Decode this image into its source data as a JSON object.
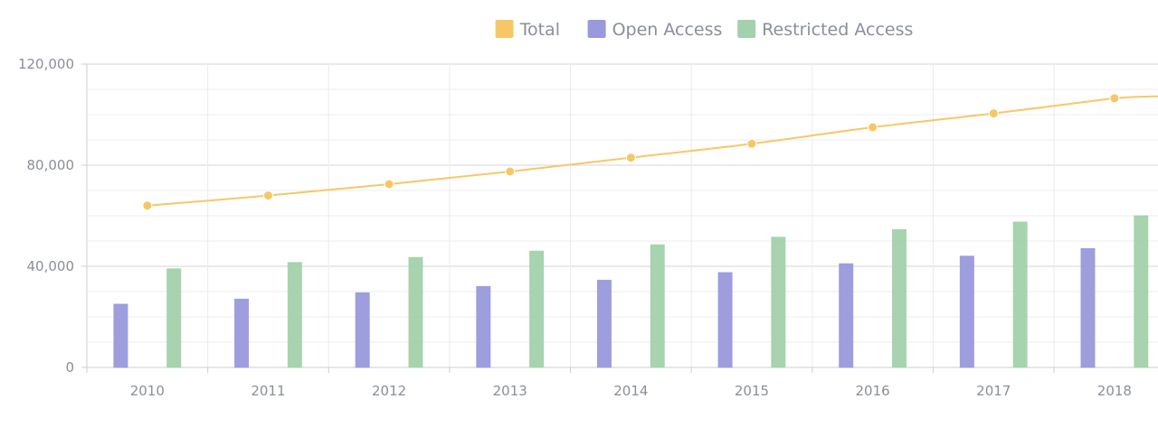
{
  "chart_data": {
    "type": "bar",
    "categories": [
      "2010",
      "2011",
      "2012",
      "2013",
      "2014",
      "2015",
      "2016",
      "2017",
      "2018"
    ],
    "series": [
      {
        "name": "Total",
        "render": "line",
        "color": "#f7c767",
        "values": [
          64000,
          68000,
          72500,
          77500,
          83000,
          88500,
          95000,
          100500,
          106500
        ]
      },
      {
        "name": "Open Access",
        "render": "bar",
        "color": "#9999dd",
        "values": [
          25000,
          27000,
          29500,
          32000,
          34500,
          37500,
          41000,
          44000,
          47000
        ]
      },
      {
        "name": "Restricted Access",
        "render": "bar",
        "color": "#a3d1ab",
        "values": [
          39000,
          41500,
          43500,
          46000,
          48500,
          51500,
          54500,
          57500,
          60000
        ]
      }
    ],
    "ylim": [
      0,
      120000
    ],
    "yticks": [
      0,
      40000,
      80000,
      120000
    ],
    "ytick_labels": [
      "0",
      "40,000",
      "80,000",
      "120,000"
    ],
    "grid": true,
    "legend_position": "top-center",
    "title": "",
    "xlabel": "",
    "ylabel": ""
  }
}
